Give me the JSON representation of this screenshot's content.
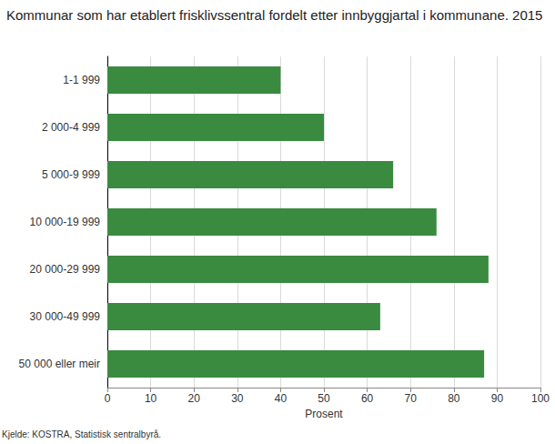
{
  "chart_data": {
    "type": "bar",
    "title": "Kommunar som har etablert frisklivssentral fordelt etter innbyggjartal i kommunane. 2015",
    "source": "Kjelde: KOSTRA, Statistisk sentralbyrå.",
    "x_label": "Prosent",
    "orientation": "horizontal",
    "categories": [
      "1-1 999",
      "2 000-4 999",
      "5 000-9 999",
      "10 000-19 999",
      "20 000-29 999",
      "30 000-49 999",
      "50 000 eller meir"
    ],
    "values": [
      40,
      50,
      66,
      76,
      88,
      63,
      87
    ],
    "color": "#3a8a3f",
    "xlim": [
      0,
      100
    ],
    "xticks": [
      0,
      10,
      20,
      30,
      40,
      50,
      60,
      70,
      80,
      90,
      100
    ],
    "grid": true
  }
}
